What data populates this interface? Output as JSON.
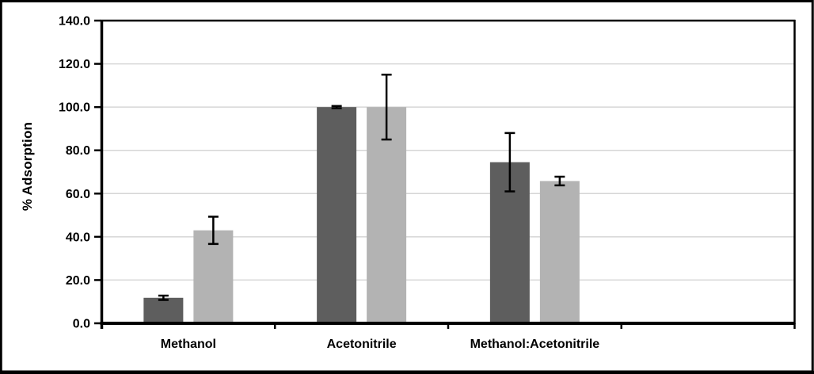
{
  "figure": {
    "background": "#ffffff",
    "outer_border_color": "#000000"
  },
  "chart_data": {
    "type": "bar",
    "title": "",
    "ylabel": "% Adsorption",
    "xlabel": "",
    "ylim": [
      0,
      140
    ],
    "yticks": [
      0,
      20,
      40,
      60,
      80,
      100,
      120,
      140
    ],
    "ytick_labels": [
      "0.0",
      "20.0",
      "40.0",
      "60.0",
      "80.0",
      "100.0",
      "120.0",
      "140.0"
    ],
    "grid": true,
    "gridline_color": "#d6d6d6",
    "axis_color": "#000000",
    "legend_position": "none",
    "categories": [
      "Methanol",
      "Acetonitrile",
      "Methanol:Acetonitrile"
    ],
    "x_slots": 4,
    "series": [
      {
        "name": "dark-gray-series",
        "color": "#5e5e5e",
        "values": [
          11.8,
          100.0,
          74.5
        ],
        "errors": [
          1.0,
          0.5,
          13.5
        ]
      },
      {
        "name": "light-gray-series",
        "color": "#b3b3b3",
        "values": [
          43.0,
          100.0,
          65.8
        ],
        "errors": [
          6.3,
          15.0,
          2.0
        ]
      }
    ],
    "error_bar_color": "#000000"
  }
}
